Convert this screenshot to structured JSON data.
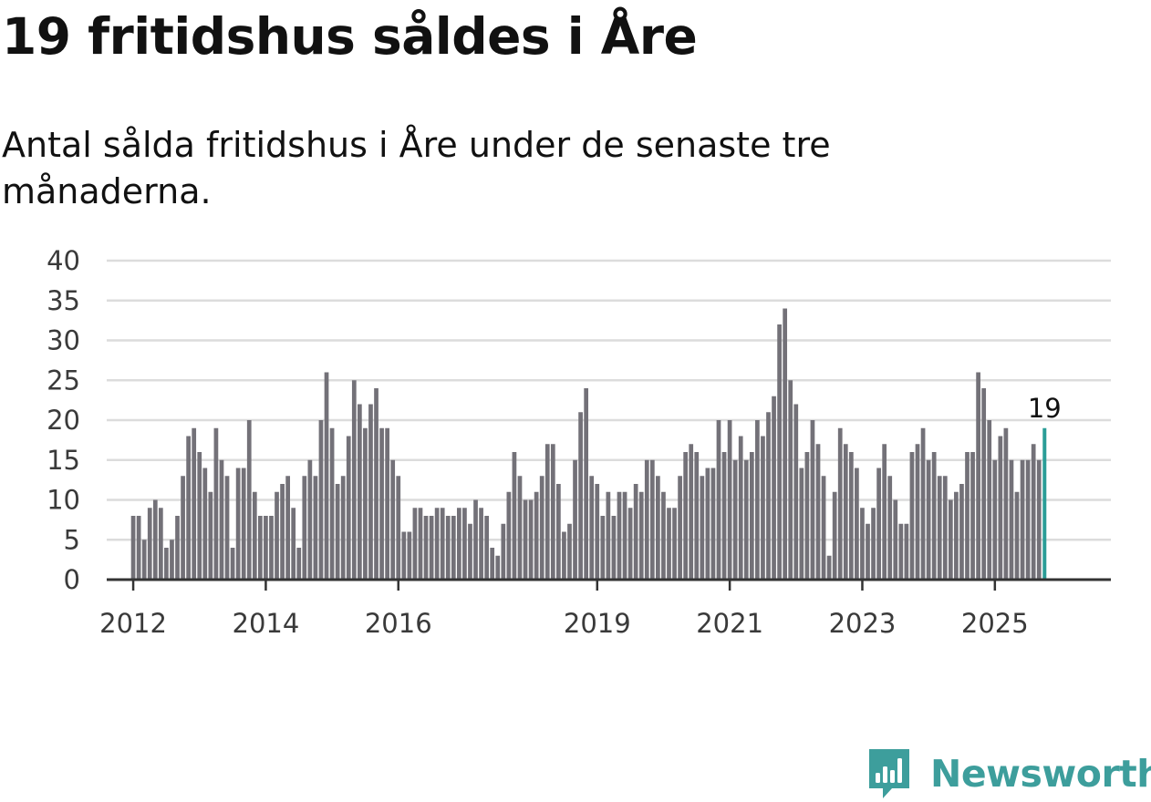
{
  "title": "19 fritidshus såldes i Åre",
  "subtitle": "Antal sålda fritidshus i Åre under de senaste tre månaderna.",
  "brand": {
    "name": "Newsworthy",
    "color": "#3d9e9c",
    "icon": "newsworthy-logo-icon"
  },
  "colors": {
    "bar": "#737178",
    "highlight": "#2a9d97",
    "grid": "#dcdcdc",
    "axis": "#333333"
  },
  "chart_data": {
    "type": "bar",
    "title": "19 fritidshus såldes i Åre",
    "ylim": [
      0,
      40
    ],
    "yticks": [
      0,
      5,
      10,
      15,
      20,
      25,
      30,
      35,
      40
    ],
    "xlabel": "",
    "ylabel": "",
    "grid": true,
    "x_range": [
      2011.6,
      2026.75
    ],
    "bar_start": 2012.0,
    "bar_step": 0.08333,
    "xticks": [
      {
        "label": "2012",
        "value": 2012.0
      },
      {
        "label": "2014",
        "value": 2014.0
      },
      {
        "label": "2016",
        "value": 2016.0
      },
      {
        "label": "2019",
        "value": 2019.0
      },
      {
        "label": "2021",
        "value": 2021.0
      },
      {
        "label": "2023",
        "value": 2023.0
      },
      {
        "label": "2025",
        "value": 2025.0
      }
    ],
    "values": [
      8,
      8,
      5,
      9,
      10,
      9,
      4,
      5,
      8,
      13,
      18,
      19,
      16,
      14,
      11,
      19,
      15,
      13,
      4,
      14,
      14,
      20,
      11,
      8,
      8,
      8,
      11,
      12,
      13,
      9,
      4,
      13,
      15,
      13,
      20,
      26,
      19,
      12,
      13,
      18,
      25,
      22,
      19,
      22,
      24,
      19,
      19,
      15,
      13,
      6,
      6,
      9,
      9,
      8,
      8,
      9,
      9,
      8,
      8,
      9,
      9,
      7,
      10,
      9,
      8,
      4,
      3,
      7,
      11,
      16,
      13,
      10,
      10,
      11,
      13,
      17,
      17,
      12,
      6,
      7,
      15,
      21,
      24,
      13,
      12,
      8,
      11,
      8,
      11,
      11,
      9,
      12,
      11,
      15,
      15,
      13,
      11,
      9,
      9,
      13,
      16,
      17,
      16,
      13,
      14,
      14,
      20,
      16,
      20,
      15,
      18,
      15,
      16,
      20,
      18,
      21,
      23,
      32,
      34,
      25,
      22,
      14,
      16,
      20,
      17,
      13,
      3,
      11,
      19,
      17,
      16,
      14,
      9,
      7,
      9,
      14,
      17,
      13,
      10,
      7,
      7,
      16,
      17,
      19,
      15,
      16,
      13,
      13,
      10,
      11,
      12,
      16,
      16,
      26,
      24,
      20,
      15,
      18,
      19,
      15,
      11,
      15,
      15,
      17,
      15,
      19
    ],
    "highlight_index": 165,
    "annotation": {
      "text": "19",
      "value": 19
    }
  }
}
